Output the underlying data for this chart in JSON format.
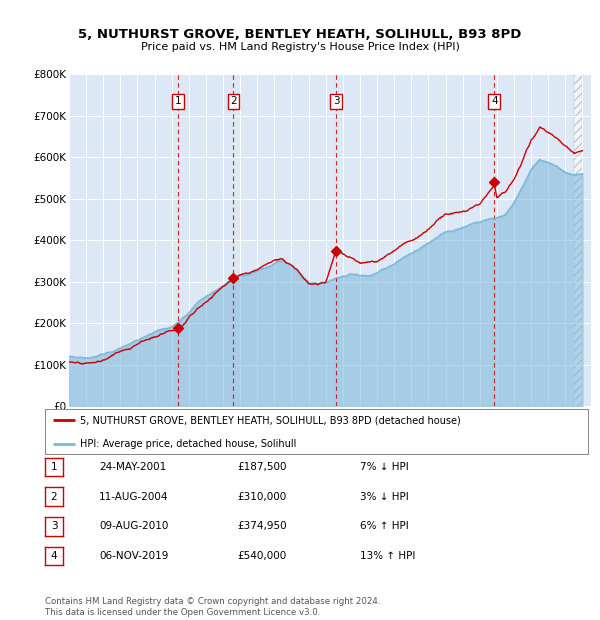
{
  "title1": "5, NUTHURST GROVE, BENTLEY HEATH, SOLIHULL, B93 8PD",
  "title2": "Price paid vs. HM Land Registry's House Price Index (HPI)",
  "hpi_color": "#7ab8d9",
  "hpi_fill": "#c8dff0",
  "price_color": "#cc0000",
  "plot_bg": "#dce8f5",
  "yticks": [
    0,
    100000,
    200000,
    300000,
    400000,
    500000,
    600000,
    700000,
    800000
  ],
  "ytick_labels": [
    "£0",
    "£100K",
    "£200K",
    "£300K",
    "£400K",
    "£500K",
    "£600K",
    "£700K",
    "£800K"
  ],
  "sales": [
    {
      "num": 1,
      "date": "24-MAY-2001",
      "price": 187500,
      "pct": "7%",
      "dir": "↓",
      "year": 2001.39
    },
    {
      "num": 2,
      "date": "11-AUG-2004",
      "price": 310000,
      "pct": "3%",
      "dir": "↓",
      "year": 2004.61
    },
    {
      "num": 3,
      "date": "09-AUG-2010",
      "price": 374950,
      "pct": "6%",
      "dir": "↑",
      "year": 2010.61
    },
    {
      "num": 4,
      "date": "06-NOV-2019",
      "price": 540000,
      "pct": "13%",
      "dir": "↑",
      "year": 2019.85
    }
  ],
  "legend1": "5, NUTHURST GROVE, BENTLEY HEATH, SOLIHULL, B93 8PD (detached house)",
  "legend2": "HPI: Average price, detached house, Solihull",
  "footnote": "Contains HM Land Registry data © Crown copyright and database right 2024.\nThis data is licensed under the Open Government Licence v3.0.",
  "xmin": 1995.0,
  "xmax": 2025.5,
  "ymin": 0,
  "ymax": 800000,
  "hatch_start": 2024.5
}
